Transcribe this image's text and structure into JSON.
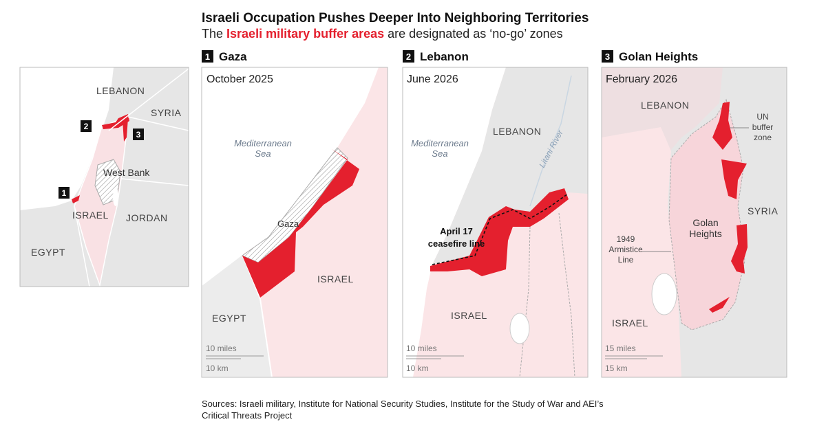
{
  "header": {
    "title": "Israeli Occupation Pushes Deeper Into Neighboring Territories",
    "subtitle": {
      "before": "The ",
      "highlight": "Israeli military buffer areas",
      "after": " are designated as ‘no-go’ zones"
    }
  },
  "overview": {
    "labels": {
      "lebanon": "LEBANON",
      "syria": "SYRIA",
      "west_bank": "West Bank",
      "jordan": "JORDAN",
      "israel": "ISRAEL",
      "egypt": "EGYPT"
    },
    "badges": [
      "1",
      "2",
      "3"
    ]
  },
  "panels": [
    {
      "number": "1",
      "name": "Gaza",
      "date": "October 2025",
      "labels": {
        "sea": [
          "Mediterranean",
          "Sea"
        ],
        "gaza": "Gaza",
        "israel": "ISRAEL",
        "egypt": "EGYPT"
      },
      "scale": [
        "10 miles",
        "10 km"
      ]
    },
    {
      "number": "2",
      "name": "Lebanon",
      "date": "June 2026",
      "labels": {
        "sea": [
          "Mediterranean",
          "Sea"
        ],
        "lebanon": "LEBANON",
        "river": "Litani River",
        "ceasefire": [
          "April 17",
          "ceasefire line"
        ],
        "israel": "ISRAEL"
      },
      "scale": [
        "10 miles",
        "10 km"
      ]
    },
    {
      "number": "3",
      "name": "Golan Heights",
      "date": "February 2026",
      "labels": {
        "lebanon": "LEBANON",
        "un": [
          "UN",
          "buffer",
          "zone"
        ],
        "syria": "SYRIA",
        "golan": [
          "Golan",
          "Heights"
        ],
        "armistice": [
          "1949",
          "Armistice",
          "Line"
        ],
        "israel": "ISRAEL"
      },
      "scale": [
        "15 miles",
        "15 km"
      ]
    }
  ],
  "sources": [
    "Sources: Israeli military, Institute for National Security Studies, Institute for the Study of War and AEI’s",
    "Critical Threats Project"
  ]
}
